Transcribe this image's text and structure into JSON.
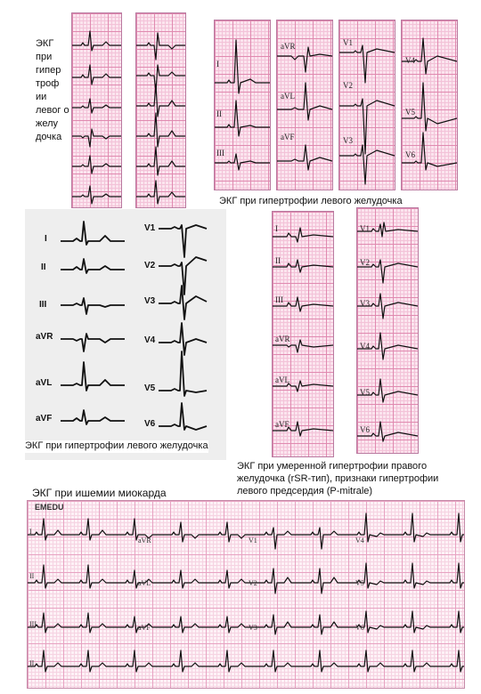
{
  "captions": {
    "lvh_side": "ЭКГ при гипер троф ии левог о желу дочка",
    "lvh_top": "ЭКГ при гипертрофии левого желудочка",
    "lvh_gray": "ЭКГ при гипертрофии левого желудочка",
    "rvh": "ЭКГ при умеренной гипертрофии правого желудочка (rSR-тип), признаки гипертрофии левого предсердия (P-mitrale)",
    "ischemia": "ЭКГ при ишемии миокарда"
  },
  "top_right_leads": {
    "col1": [
      "I",
      "II",
      "III"
    ],
    "col2": [
      "aVR",
      "aVL",
      "aVF"
    ],
    "col3": [
      "V1",
      "V2",
      "V3"
    ],
    "col4": [
      "V4",
      "V5",
      "V6"
    ]
  },
  "gray_panel_leads": {
    "limb": [
      "I",
      "II",
      "III",
      "aVR",
      "aVL",
      "aVF"
    ],
    "chest": [
      "V1",
      "V2",
      "V3",
      "V4",
      "V5",
      "V6"
    ]
  },
  "mid_right_leads": {
    "col1": [
      "I",
      "II",
      "III",
      "aVR",
      "aVL",
      "aVF"
    ],
    "col2": [
      "V1",
      "V2",
      "V3",
      "V4",
      "V5",
      "V6"
    ]
  },
  "big_ecg": {
    "brand": "EMEDU",
    "leads": [
      "I",
      "aVR",
      "V1",
      "V4",
      "II",
      "aVL",
      "V2",
      "V5",
      "III",
      "aVF",
      "V3",
      "V6",
      "II"
    ]
  }
}
